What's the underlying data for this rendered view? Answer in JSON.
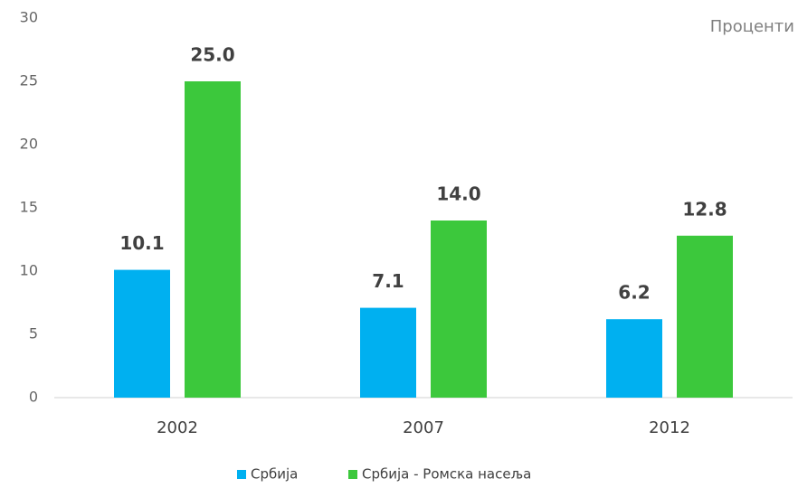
{
  "chart_data": {
    "type": "bar",
    "annotation": "Проценти",
    "categories": [
      "2002",
      "2007",
      "2012"
    ],
    "series": [
      {
        "name": "Србија",
        "color": "#00b0f0",
        "values": [
          10.1,
          7.1,
          6.2
        ]
      },
      {
        "name": "Србија - Ромска насеља",
        "color": "#3cc83c",
        "values": [
          25,
          14,
          12.8
        ],
        "value_labels": [
          "25.0",
          "14.0",
          "12.8"
        ]
      }
    ],
    "ylim": [
      0,
      30
    ],
    "yticks": [
      0,
      5,
      10,
      15,
      20,
      25,
      30
    ],
    "grid": false,
    "legend": "bottom"
  }
}
